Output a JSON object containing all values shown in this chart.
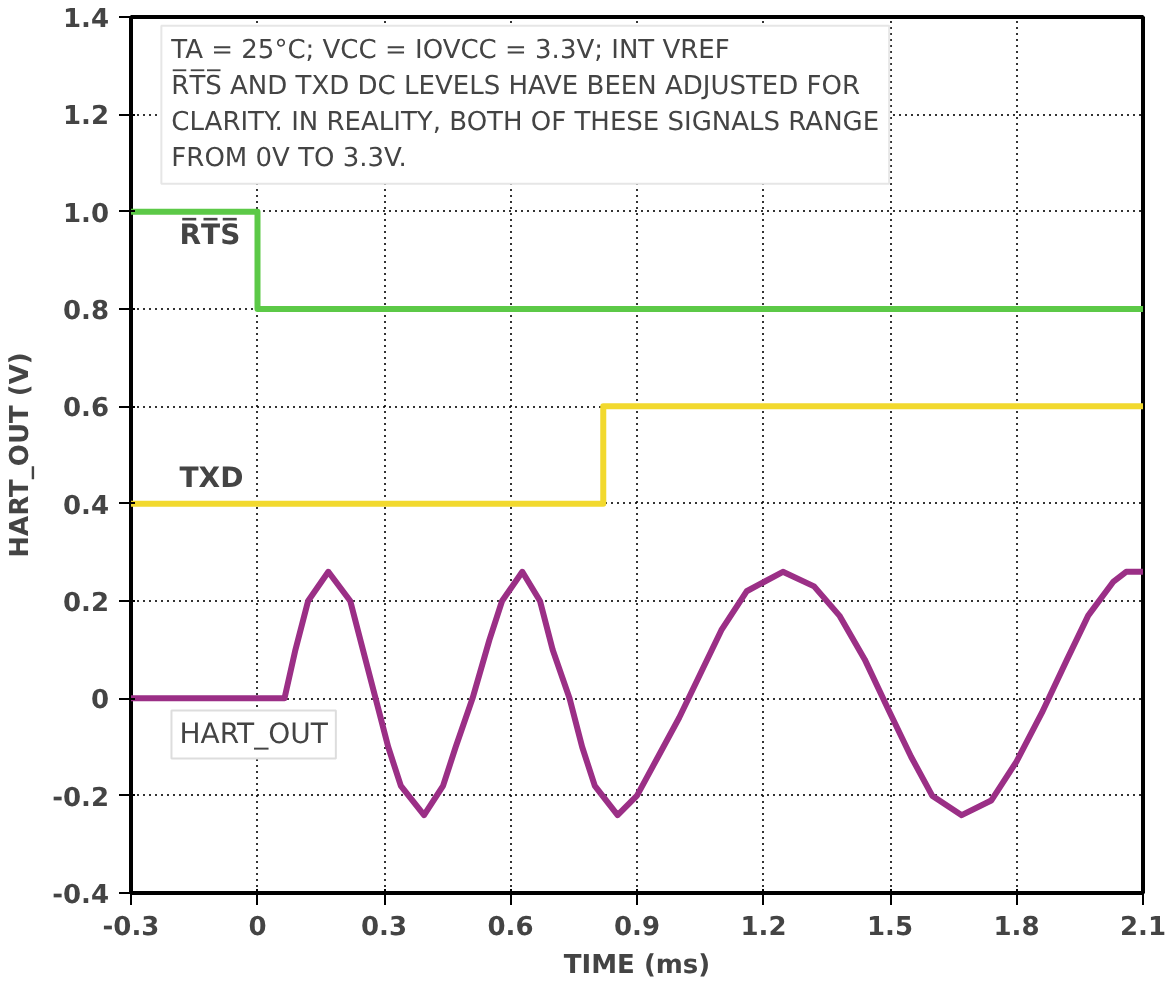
{
  "chart_data": {
    "type": "line",
    "xlabel": "TIME (ms)",
    "ylabel": "HART_OUT (V)",
    "xlim": [
      -0.3,
      2.1
    ],
    "xticks": [
      -0.3,
      0,
      0.3,
      0.6,
      0.9,
      1.2,
      1.5,
      1.8,
      2.1
    ],
    "ylim": [
      -0.4,
      1.4
    ],
    "yticks": [
      -0.4,
      -0.2,
      0,
      0.2,
      0.4,
      0.6,
      0.8,
      {
        "value": 1.0,
        "label": "1.0"
      },
      1.2,
      1.4
    ],
    "grid": true,
    "line_style": "solid",
    "annotations": [
      "TA = 25°C; VCC = IOVCC = 3.3V; INT VREF",
      "R̅T̅S̅ AND TXD DC LEVELS HAVE BEEN ADJUSTED FOR CLARITY. IN REALITY, BOTH OF THESE SIGNALS RANGE FROM 0V TO 3.3V."
    ],
    "series": [
      {
        "name": "R̅T̅S̅",
        "color": "#5cc947",
        "x": [
          -0.3,
          0,
          0,
          2.1
        ],
        "values": [
          1.0,
          1.0,
          0.8,
          0.8
        ]
      },
      {
        "name": "TXD",
        "color": "#f2d92e",
        "x": [
          -0.3,
          0.82,
          0.82,
          2.1
        ],
        "values": [
          0.4,
          0.4,
          0.6,
          0.6
        ]
      },
      {
        "name": "HART_OUT",
        "color": "#9b2f86",
        "x": [
          -0.3,
          0.064,
          0.09,
          0.12,
          0.168,
          0.22,
          0.25,
          0.28,
          0.31,
          0.34,
          0.395,
          0.44,
          0.47,
          0.51,
          0.55,
          0.58,
          0.628,
          0.67,
          0.7,
          0.74,
          0.77,
          0.8,
          0.854,
          0.9,
          0.95,
          1.0,
          1.05,
          1.1,
          1.16,
          1.246,
          1.32,
          1.38,
          1.44,
          1.5,
          1.55,
          1.6,
          1.67,
          1.74,
          1.8,
          1.86,
          1.92,
          1.97,
          2.03,
          2.06,
          2.1
        ],
        "values": [
          0,
          0,
          0.1,
          0.2,
          0.26,
          0.2,
          0.1,
          0,
          -0.1,
          -0.18,
          -0.24,
          -0.18,
          -0.1,
          0,
          0.12,
          0.2,
          0.26,
          0.2,
          0.1,
          0,
          -0.1,
          -0.18,
          -0.24,
          -0.2,
          -0.12,
          -0.04,
          0.05,
          0.14,
          0.22,
          0.26,
          0.23,
          0.17,
          0.08,
          -0.03,
          -0.12,
          -0.2,
          -0.24,
          -0.21,
          -0.13,
          -0.03,
          0.08,
          0.17,
          0.24,
          0.26,
          0.26
        ]
      }
    ]
  }
}
